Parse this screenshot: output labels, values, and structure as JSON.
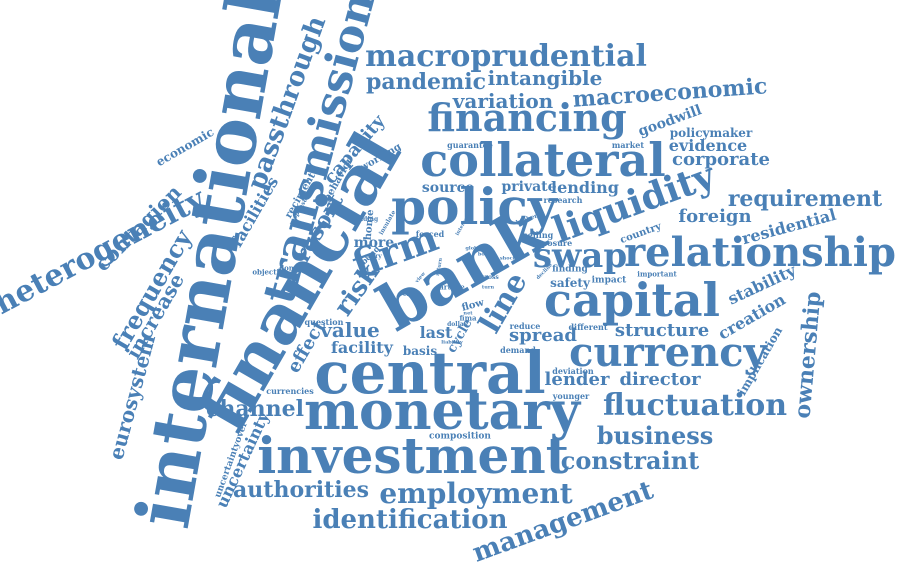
{
  "cloud": {
    "color": "#4a80b6",
    "words": [
      "international",
      "financial",
      "bank",
      "central",
      "monetary",
      "investment",
      "policy",
      "transmission",
      "collateral",
      "capital",
      "relationship",
      "financing",
      "currency",
      "liquidity",
      "firm",
      "swap",
      "macroprudential",
      "heterogeneity",
      "passthrough",
      "fluctuation",
      "employment",
      "identification",
      "management",
      "business",
      "constraint",
      "authorities",
      "channel",
      "requirement",
      "pandemic",
      "macroeconomic",
      "intangible",
      "variation",
      "frequency",
      "contagion",
      "increase",
      "eurosystem",
      "uncertainty",
      "ownership",
      "structure",
      "director",
      "lender",
      "spread",
      "value",
      "facility",
      "effect",
      "resort",
      "risk",
      "line",
      "corporate",
      "evidence",
      "goodwill",
      "policymaker",
      "foreign",
      "residential",
      "stability",
      "creation",
      "implication",
      "lending",
      "private",
      "source",
      "capacity",
      "facilities",
      "economic",
      "behavior",
      "working",
      "recipient",
      "home",
      "more",
      "forced",
      "ceiling",
      "guarantee",
      "market",
      "research",
      "country",
      "exposure",
      "finding",
      "safety",
      "impact",
      "important",
      "article",
      "cross",
      "flow",
      "last",
      "basis",
      "cycle",
      "reduce",
      "different",
      "demand",
      "deviation",
      "younger",
      "composition",
      "uncertaintyover",
      "currencies",
      "question",
      "objective",
      "domestic",
      "bond",
      "crisis",
      "dollar",
      "fima",
      "entry",
      "insulate",
      "funding",
      "higher",
      "decline",
      "response",
      "board",
      "liability",
      "turn",
      "interest",
      "global",
      "return",
      "net",
      "shock",
      "view"
    ]
  }
}
